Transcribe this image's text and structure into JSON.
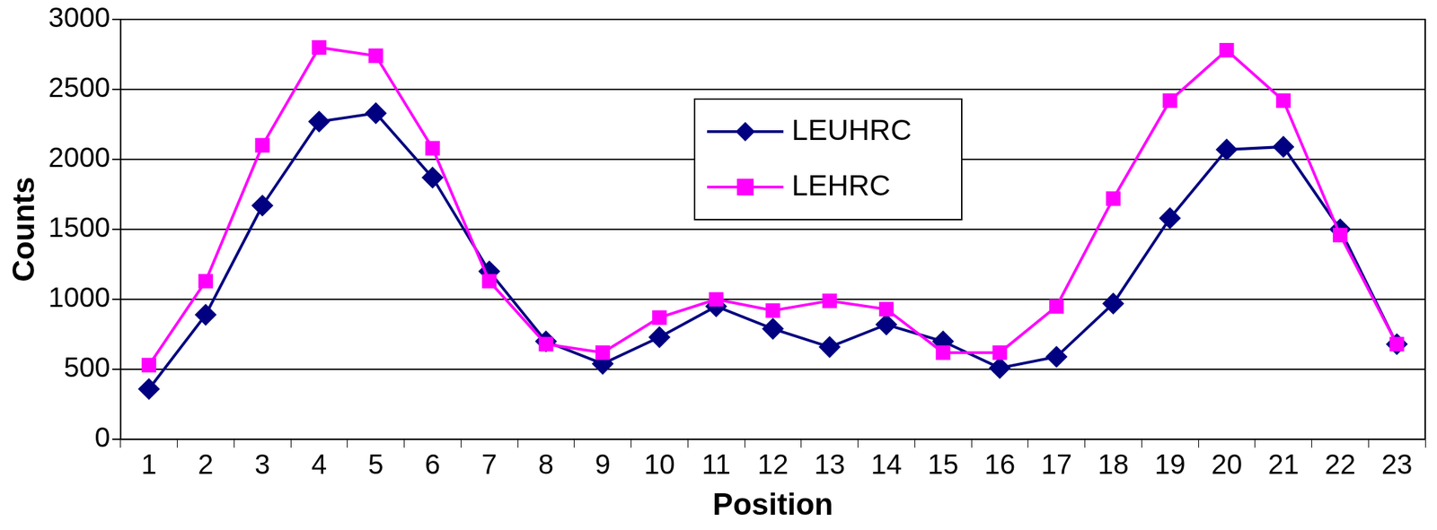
{
  "chart_data": {
    "type": "line",
    "x_label": "Position",
    "y_label": "Counts",
    "categories": [
      "1",
      "2",
      "3",
      "4",
      "5",
      "6",
      "7",
      "8",
      "9",
      "10",
      "11",
      "12",
      "13",
      "14",
      "15",
      "16",
      "17",
      "18",
      "19",
      "20",
      "21",
      "22",
      "23"
    ],
    "series": [
      {
        "name": "LEUHRC",
        "color": "#000080",
        "marker": "diamond",
        "values": [
          360,
          890,
          1670,
          2270,
          2330,
          1870,
          1200,
          700,
          540,
          730,
          950,
          790,
          660,
          820,
          700,
          510,
          590,
          970,
          1580,
          2070,
          2090,
          1500,
          680
        ]
      },
      {
        "name": "LEHRC",
        "color": "#ff00ff",
        "marker": "square",
        "values": [
          530,
          1130,
          2100,
          2800,
          2740,
          2080,
          1130,
          680,
          620,
          870,
          1000,
          920,
          990,
          930,
          620,
          620,
          950,
          1720,
          2420,
          2780,
          2420,
          1460,
          680
        ]
      }
    ],
    "ylim": [
      0,
      3000
    ],
    "yticks": [
      0,
      500,
      1000,
      1500,
      2000,
      2500,
      3000
    ],
    "grid": true,
    "legend": "center"
  }
}
